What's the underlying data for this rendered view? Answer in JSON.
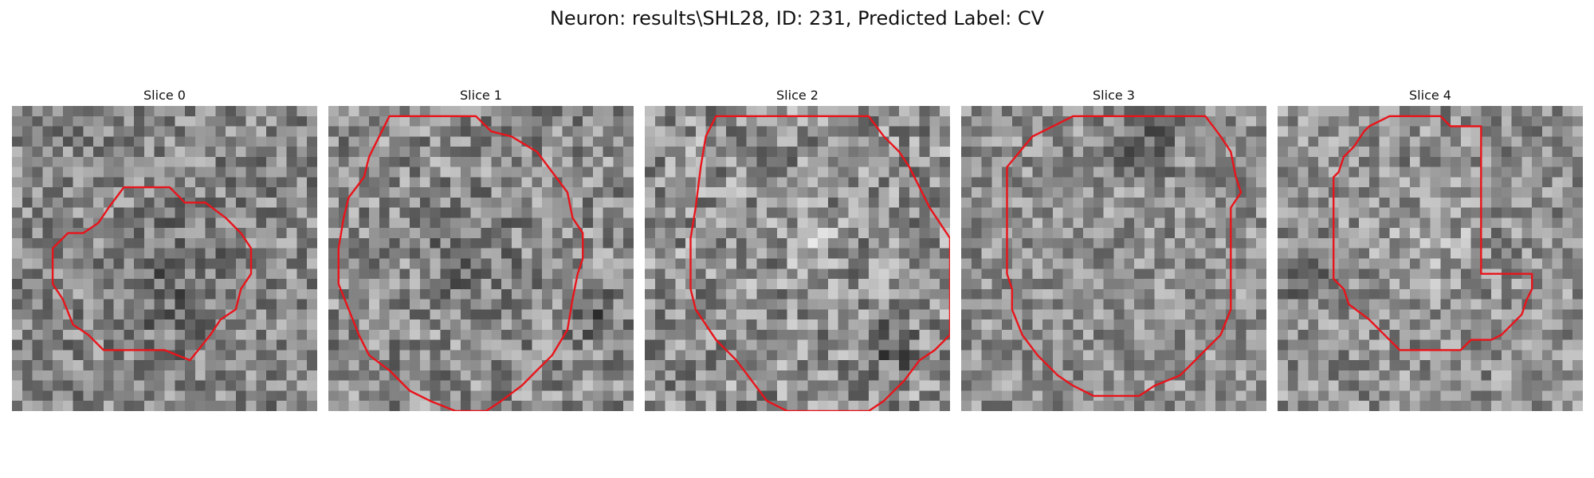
{
  "figure": {
    "title": "Neuron: results\\SHL28, ID: 231, Predicted Label: CV"
  },
  "panels": [
    {
      "title": "Slice 0"
    },
    {
      "title": "Slice 1"
    },
    {
      "title": "Slice 2"
    },
    {
      "title": "Slice 3"
    },
    {
      "title": "Slice 4"
    }
  ],
  "colors": {
    "contour": "#e8141b"
  }
}
